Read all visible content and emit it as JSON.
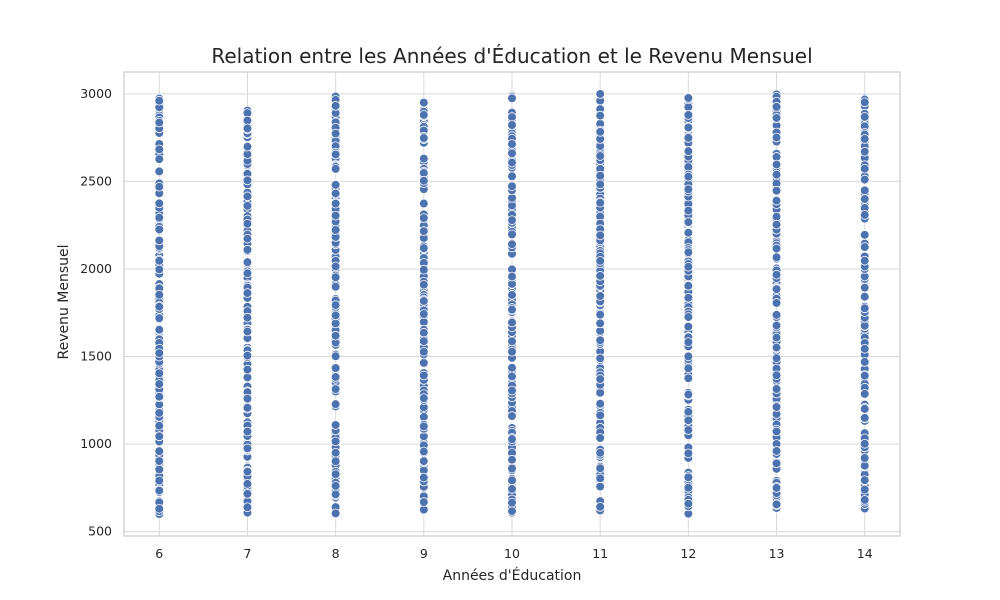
{
  "chart_data": {
    "type": "scatter",
    "title": "Relation entre les Années d'Éducation et le Revenu Mensuel",
    "xlabel": "Années d'Éducation",
    "ylabel": "Revenu Mensuel",
    "x_ticks": [
      6,
      7,
      8,
      9,
      10,
      11,
      12,
      13,
      14
    ],
    "y_ticks": [
      500,
      1000,
      1500,
      2000,
      2500,
      3000
    ],
    "xlim": [
      5.6,
      14.4
    ],
    "ylim": [
      475,
      3125
    ],
    "grid": true,
    "colors": {
      "point": "#4c72b0",
      "point_edge": "#ffffff",
      "grid": "#d9d9d9",
      "frame": "#cccccc"
    },
    "series": [
      {
        "x_values": [
          6,
          7,
          8,
          9,
          10,
          11,
          12,
          13,
          14
        ],
        "y_range": [
          600,
          3000
        ],
        "points_per_x": 160
      }
    ]
  }
}
